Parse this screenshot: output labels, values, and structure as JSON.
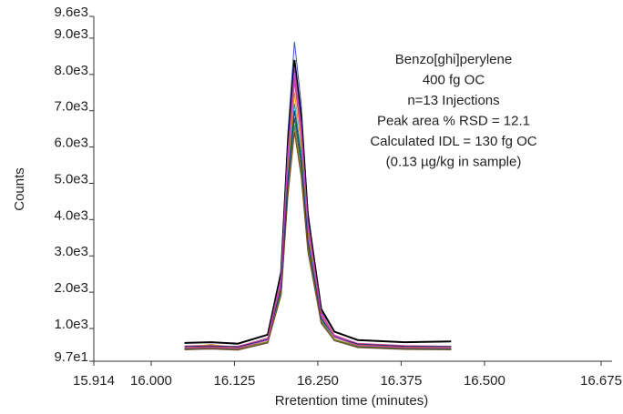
{
  "chart_data": {
    "type": "line",
    "x_label": "Rretention time (minutes)",
    "y_label": "Counts",
    "annotation": [
      "Benzo[ghi]perylene",
      "400 fg OC",
      "n=13 Injections",
      "Peak area % RSD = 12.1",
      "Calculated IDL = 130 fg OC",
      "(0.13 µg/kg in sample)"
    ],
    "x": [
      16.05,
      16.09,
      16.13,
      16.175,
      16.195,
      16.205,
      16.215,
      16.225,
      16.235,
      16.255,
      16.275,
      16.31,
      16.38,
      16.45
    ],
    "xlim": [
      15.914,
      16.675
    ],
    "xticks": [
      15.914,
      {
        "value": 16.0,
        "label": "16.000"
      },
      16.125,
      {
        "value": 16.25,
        "label": "16.250"
      },
      16.375,
      {
        "value": 16.5,
        "label": "16.500"
      },
      16.675
    ],
    "ylim": [
      97,
      9600
    ],
    "yticks": [
      {
        "value": 97,
        "label": "9.7e1"
      },
      {
        "value": 1000,
        "label": "1.0e3"
      },
      {
        "value": 2000,
        "label": "2.0e3"
      },
      {
        "value": 3000,
        "label": "3.0e3"
      },
      {
        "value": 4000,
        "label": "4.0e3"
      },
      {
        "value": 5000,
        "label": "5.0e3"
      },
      {
        "value": 6000,
        "label": "6.0e3"
      },
      {
        "value": 7000,
        "label": "7.0e3"
      },
      {
        "value": 8000,
        "label": "8.0e3"
      },
      {
        "value": 9000,
        "label": "9.0e3"
      },
      {
        "value": 9600,
        "label": "9.6e3"
      }
    ],
    "grid": false,
    "series": [
      {
        "color": "#3a4fc4",
        "values": [
          450,
          470,
          440,
          700,
          2560,
          6370,
          8900,
          7210,
          4250,
          1460,
          790,
          530,
          460,
          450
        ]
      },
      {
        "color": "#000000",
        "values": [
          600,
          620,
          580,
          830,
          2550,
          6060,
          8400,
          6840,
          4110,
          1540,
          910,
          680,
          620,
          640
        ]
      },
      {
        "color": "#8a3fb8",
        "values": [
          500,
          480,
          510,
          730,
          2430,
          5890,
          8200,
          6660,
          3970,
          1420,
          810,
          580,
          500,
          490
        ]
      },
      {
        "color": "#e0509a",
        "values": [
          520,
          540,
          500,
          740,
          2390,
          5760,
          8000,
          6500,
          3890,
          1420,
          820,
          590,
          530,
          510
        ]
      },
      {
        "color": "#d23a2a",
        "values": [
          480,
          500,
          470,
          700,
          2310,
          5600,
          7800,
          6340,
          3770,
          1360,
          770,
          550,
          490,
          470
        ]
      },
      {
        "color": "#e38a1f",
        "values": [
          470,
          560,
          450,
          680,
          2230,
          5390,
          7500,
          6090,
          3630,
          1310,
          750,
          540,
          470,
          480
        ]
      },
      {
        "color": "#1f9aa0",
        "values": [
          430,
          450,
          420,
          630,
          2120,
          5170,
          7200,
          5850,
          3480,
          1240,
          700,
          500,
          440,
          430
        ]
      },
      {
        "color": "#1f6b2a",
        "values": [
          440,
          460,
          430,
          630,
          2030,
          4890,
          6800,
          5530,
          3300,
          1200,
          690,
          500,
          450,
          440
        ]
      },
      {
        "color": "#777777",
        "values": [
          410,
          430,
          400,
          600,
          1960,
          4740,
          6600,
          5360,
          3200,
          1150,
          660,
          470,
          420,
          410
        ]
      },
      {
        "color": "#8a8a1f",
        "values": [
          460,
          480,
          440,
          640,
          1970,
          4690,
          6500,
          5290,
          3180,
          1180,
          700,
          520,
          470,
          460
        ]
      },
      {
        "color": "#7a4a1f",
        "values": [
          420,
          440,
          410,
          600,
          1920,
          4610,
          6400,
          5200,
          3110,
          1140,
          660,
          480,
          430,
          420
        ]
      },
      {
        "color": "#1f2f7a",
        "values": [
          500,
          520,
          490,
          700,
          2130,
          5050,
          7000,
          5700,
          3430,
          1280,
          760,
          570,
          510,
          500
        ]
      },
      {
        "color": "#c43fc4",
        "values": [
          460,
          480,
          450,
          680,
          2320,
          5670,
          7900,
          6410,
          3810,
          1350,
          760,
          530,
          470,
          460
        ]
      }
    ]
  }
}
